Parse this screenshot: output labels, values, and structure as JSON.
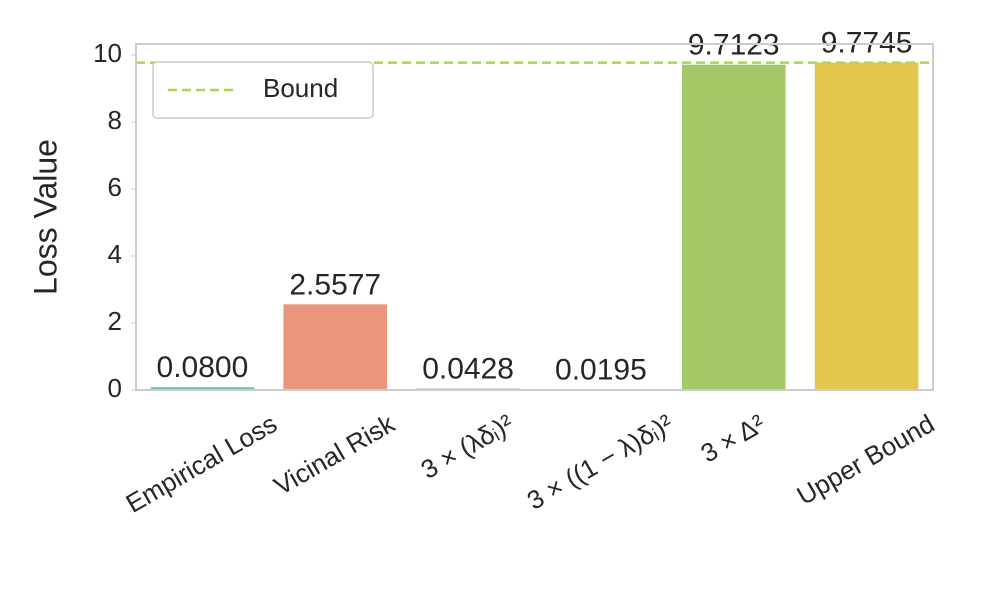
{
  "chart_data": {
    "type": "bar",
    "y_label": "Loss Value",
    "categories": [
      "Empirical Loss",
      "Vicinal Risk",
      "3 × (λδᵢ)²",
      "3 × ((1 − λ)δᵢ)²",
      "3 × Δ²",
      "Upper Bound"
    ],
    "values": [
      0.08,
      2.5577,
      0.0428,
      0.0195,
      9.7123,
      9.7745
    ],
    "value_labels": [
      "0.0800",
      "2.5577",
      "0.0428",
      "0.0195",
      "9.7123",
      "9.7745"
    ],
    "colors": [
      "#6dbfa3",
      "#e9967a",
      "#95a3c7",
      "#dd8fc0",
      "#a4c767",
      "#e3c74d"
    ],
    "bound": {
      "name": "Bound",
      "value": 9.7745,
      "color": "#a6d854"
    },
    "legend": "upper left",
    "ylim": [
      0,
      10.33
    ],
    "yticks": [
      0,
      2,
      4,
      6,
      8,
      10
    ]
  }
}
